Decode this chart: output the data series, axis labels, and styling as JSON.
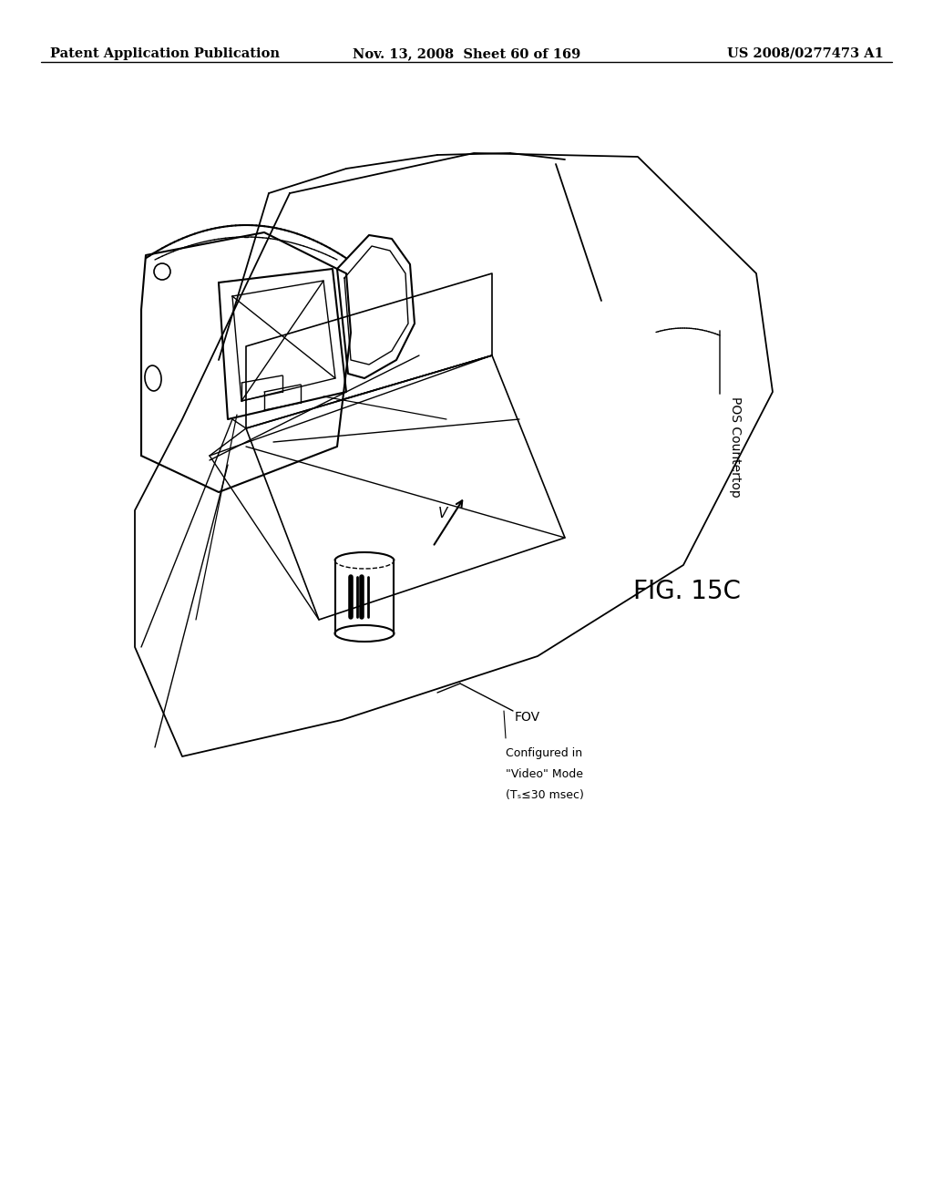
{
  "background_color": "#ffffff",
  "header_left": "Patent Application Publication",
  "header_mid": "Nov. 13, 2008  Sheet 60 of 169",
  "header_right": "US 2008/0277473 A1",
  "fig_label": "FIG. 15C",
  "label_pos_countertop": "POS Countertop",
  "label_fov": "FOV",
  "label_configured_line1": "Configured in",
  "label_configured_line2": "\"Video\" Mode",
  "label_configured_line3": "(Tₛ≤30 msec)",
  "label_v": "V",
  "line_color": "#000000",
  "text_color": "#000000",
  "header_fontsize": 10.5,
  "fig_label_fontsize": 20,
  "annotation_fontsize": 10
}
